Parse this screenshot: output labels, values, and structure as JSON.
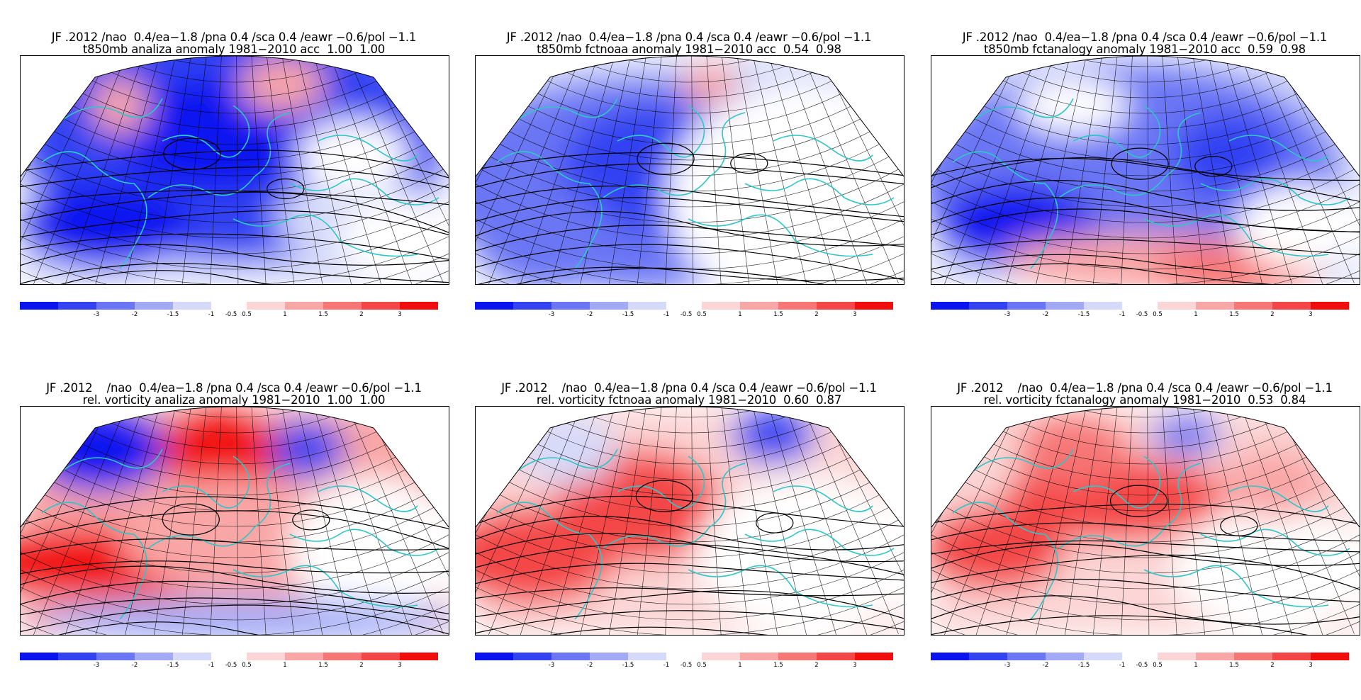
{
  "panels": [
    {
      "title_line1": "JF .2012 /nao  0.4/ea−1.8 /pna 0.4 /sca 0.4 /eawr −0.6/pol −1.1",
      "title_line2": "t850mb analiza anomaly 1981−2010 acc  1.00  1.00",
      "field": "temperature",
      "scheme": 0
    },
    {
      "title_line1": "JF .2012 /nao  0.4/ea−1.8 /pna 0.4 /sca 0.4 /eawr −0.6/pol −1.1",
      "title_line2": "t850mb fctnoaa anomaly 1981−2010 acc  0.54  0.98",
      "field": "temperature",
      "scheme": 1
    },
    {
      "title_line1": "JF .2012 /nao  0.4/ea−1.8 /pna 0.4 /sca 0.4 /eawr −0.6/pol −1.1",
      "title_line2": "t850mb fctanalogy anomaly 1981−2010 acc  0.59  0.98",
      "field": "temperature",
      "scheme": 2
    },
    {
      "title_line1": "JF .2012    /nao  0.4/ea−1.8 /pna 0.4 /sca 0.4 /eawr −0.6/pol −1.1",
      "title_line2": "rel. vorticity analiza anomaly 1981−2010  1.00  1.00",
      "field": "vorticity",
      "scheme": 3
    },
    {
      "title_line1": "JF .2012    /nao  0.4/ea−1.8 /pna 0.4 /sca 0.4 /eawr −0.6/pol −1.1",
      "title_line2": "rel. vorticity fctnoaa anomaly 1981−2010  0.60  0.87",
      "field": "vorticity",
      "scheme": 4
    },
    {
      "title_line1": "JF .2012    /nao  0.4/ea−1.8 /pna 0.4 /sca 0.4 /eawr −0.6/pol −1.1",
      "title_line2": "rel. vorticity fctanalogy anomaly 1981−2010  0.53  0.84",
      "field": "vorticity",
      "scheme": 5
    }
  ],
  "colorbar": {
    "colors": [
      "#0a14f0",
      "#3343f2",
      "#6a76f4",
      "#a2aaf6",
      "#d6dafa",
      "#ffffff",
      "#fcd6d6",
      "#f9a6a6",
      "#f77676",
      "#f44646",
      "#f20d0d"
    ],
    "labels": [
      "-3",
      "-2",
      "-1.5",
      "-1",
      "-0.5",
      "0.5",
      "1",
      "1.5",
      "2",
      "3"
    ]
  },
  "colors": {
    "coastline": "#2ec6c6",
    "contour": "#000000",
    "grid": "#000000"
  }
}
